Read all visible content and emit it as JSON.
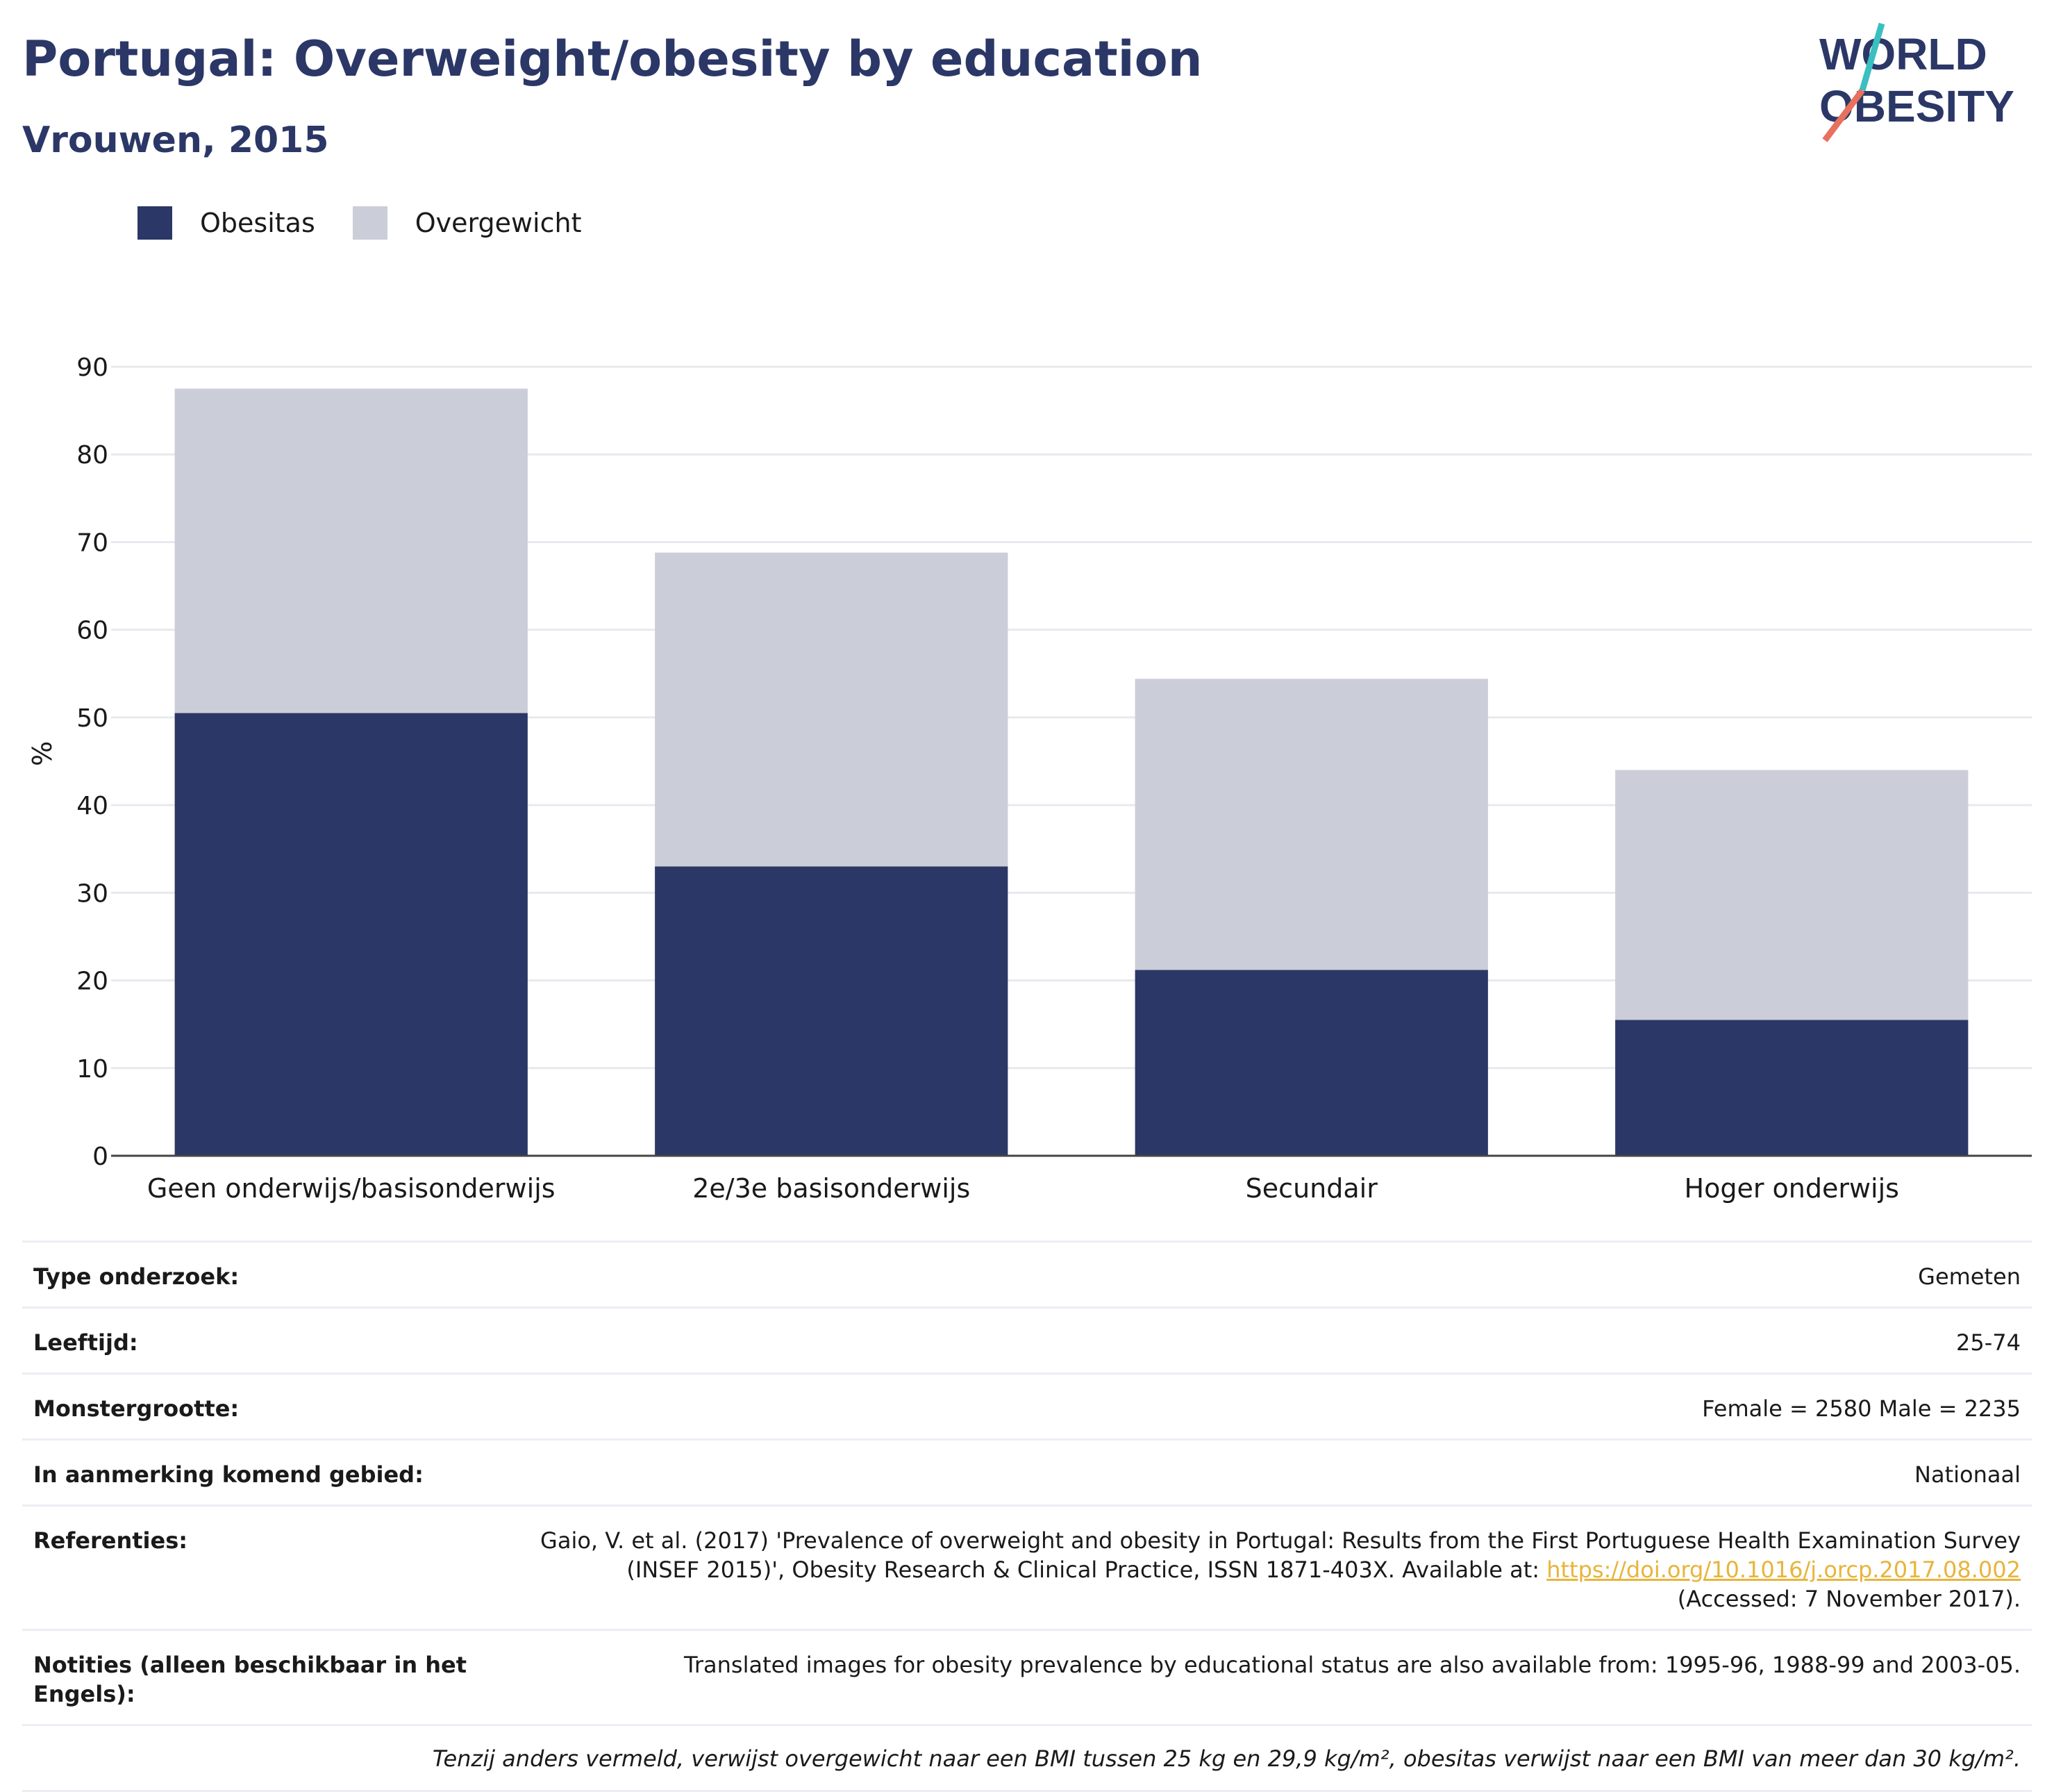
{
  "header": {
    "title": "Portugal: Overweight/obesity by education",
    "subtitle": "Vrouwen, 2015"
  },
  "logo": {
    "line1": "WORLD",
    "line2": "OBESITY"
  },
  "colors": {
    "obesitas": "#2b3766",
    "overgewicht": "#cbcdd8",
    "title": "#2b3766",
    "link": "#e8b43a"
  },
  "legend": [
    {
      "label": "Obesitas",
      "color": "#2b3766"
    },
    {
      "label": "Overgewicht",
      "color": "#cbcdd8"
    }
  ],
  "chart_data": {
    "type": "bar",
    "stacked": true,
    "categories": [
      "Geen onderwijs/basisonderwijs",
      "2e/3e basisonderwijs",
      "Secundair",
      "Hoger onderwijs"
    ],
    "series": [
      {
        "name": "Obesitas",
        "values": [
          50.5,
          33,
          21.2,
          15.5
        ]
      },
      {
        "name": "Overgewicht",
        "values": [
          37,
          35.8,
          33.2,
          28.5
        ]
      }
    ],
    "ylabel": "%",
    "ylim": [
      0,
      90
    ],
    "yticks": [
      0,
      10,
      20,
      30,
      40,
      50,
      60,
      70,
      80,
      90
    ],
    "grid": true,
    "legend_position": "top-left"
  },
  "meta": {
    "rows": [
      {
        "label": "Type onderzoek:",
        "value": "Gemeten"
      },
      {
        "label": "Leeftijd:",
        "value": "25-74"
      },
      {
        "label": "Monstergrootte:",
        "value": "Female = 2580 Male = 2235"
      },
      {
        "label": "In aanmerking komend gebied:",
        "value": "Nationaal"
      }
    ],
    "references": {
      "label": "Referenties:",
      "text_line1": "Gaio, V. et al. (2017) 'Prevalence of overweight and obesity in Portugal: Results from the First Portuguese Health Examination Survey",
      "text_line2": "(INSEF 2015)', Obesity Research & Clinical Practice, ISSN 1871-403X. Available at: ",
      "link": "https://doi.org/10.1016/j.orcp.2017.08.002",
      "text_line3": "(Accessed: 7 November 2017)."
    },
    "notes": {
      "label": "Notities (alleen beschikbaar in het Engels):",
      "value": "Translated images for obesity prevalence by educational status are also available from: 1995-96, 1988-99 and 2003-05."
    },
    "footnote": "Tenzij anders vermeld, verwijst overgewicht naar een BMI tussen 25 kg en 29,9 kg/m², obesitas verwijst naar een BMI van meer dan 30 kg/m²."
  }
}
